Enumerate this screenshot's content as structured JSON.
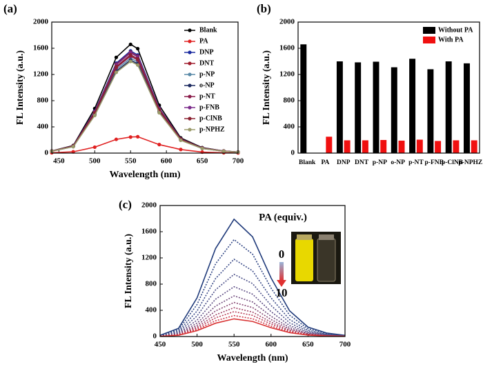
{
  "chart_data": [
    {
      "type": "line",
      "label": "(a)",
      "xlabel": "Wavelength (nm)",
      "ylabel": "FL Intensity (a.u.)",
      "x": [
        440,
        470,
        500,
        530,
        550,
        560,
        590,
        620,
        650,
        680,
        700
      ],
      "xlim": [
        440,
        700
      ],
      "xticks": [
        450,
        500,
        550,
        600,
        650,
        700
      ],
      "ylim": [
        0,
        2000
      ],
      "yticks": [
        0,
        400,
        800,
        1200,
        1600,
        2000
      ],
      "markers": true,
      "legend": "upper right",
      "series": [
        {
          "name": "Blank",
          "color": "#000000",
          "values": [
            33,
            116,
            681,
            1461,
            1660,
            1594,
            730,
            232,
            83,
            33,
            17
          ]
        },
        {
          "name": "PA",
          "color": "#e02020",
          "values": [
            5,
            20,
            90,
            210,
            245,
            250,
            130,
            55,
            15,
            5,
            2
          ]
        },
        {
          "name": "DNP",
          "color": "#1a2aa0",
          "values": [
            31,
            109,
            640,
            1373,
            1560,
            1498,
            686,
            218,
            78,
            31,
            16
          ]
        },
        {
          "name": "DNT",
          "color": "#a01c2c",
          "values": [
            31,
            108,
            631,
            1355,
            1540,
            1478,
            678,
            216,
            77,
            31,
            15
          ]
        },
        {
          "name": "p-NP",
          "color": "#5a8aa8",
          "values": [
            29,
            102,
            595,
            1276,
            1450,
            1392,
            638,
            203,
            73,
            29,
            15
          ]
        },
        {
          "name": "o-NP",
          "color": "#1c2a60",
          "values": [
            28,
            99,
            582,
            1250,
            1420,
            1363,
            625,
            199,
            71,
            28,
            14
          ]
        },
        {
          "name": "p-NT",
          "color": "#8a1c4a",
          "values": [
            30,
            104,
            607,
            1302,
            1480,
            1421,
            651,
            207,
            74,
            30,
            15
          ]
        },
        {
          "name": "p-FNB",
          "color": "#7a2a8a",
          "values": [
            31,
            107,
            627,
            1346,
            1530,
            1469,
            673,
            214,
            77,
            31,
            15
          ]
        },
        {
          "name": "p-ClNB",
          "color": "#8a2030",
          "values": [
            30,
            105,
            615,
            1320,
            1500,
            1440,
            660,
            210,
            75,
            30,
            15
          ]
        },
        {
          "name": "p-NPHZ",
          "color": "#9a9a6a",
          "values": [
            28,
            98,
            574,
            1232,
            1400,
            1344,
            616,
            196,
            70,
            28,
            14
          ]
        }
      ]
    },
    {
      "type": "bar",
      "label": "(b)",
      "ylabel": "FL Intensity (a.u.)",
      "categories": [
        "Blank",
        "PA",
        "DNP",
        "DNT",
        "p-NP",
        "o-NP",
        "p-NT",
        "p-FNB",
        "p-ClNB",
        "p-NPHZ"
      ],
      "ylim": [
        0,
        2000
      ],
      "yticks": [
        0,
        400,
        800,
        1200,
        1600,
        2000
      ],
      "legend": "upper right",
      "series": [
        {
          "name": "Without PA",
          "color": "#000000",
          "values": [
            1660,
            null,
            1400,
            1385,
            1395,
            1310,
            1440,
            1280,
            1400,
            1370
          ]
        },
        {
          "name": "With PA",
          "color": "#f01010",
          "values": [
            null,
            250,
            195,
            195,
            200,
            190,
            205,
            185,
            195,
            195
          ]
        }
      ]
    },
    {
      "type": "line",
      "label": "(c)",
      "xlabel": "Wavelength (nm)",
      "ylabel": "FL Intensity (a.u.)",
      "x": [
        450,
        475,
        500,
        525,
        550,
        575,
        600,
        625,
        650,
        675,
        700
      ],
      "xlim": [
        450,
        700
      ],
      "xticks": [
        450,
        500,
        550,
        600,
        650,
        700
      ],
      "ylim": [
        0,
        2000
      ],
      "yticks": [
        0,
        400,
        800,
        1200,
        1600,
        2000
      ],
      "markers": false,
      "annotations": [
        "PA (equiv.)",
        "0",
        "10"
      ],
      "series": [
        {
          "color": "#1f3a7a",
          "style": "solid",
          "values": [
            18,
            125,
            591,
            1343,
            1790,
            1522,
            895,
            394,
            143,
            54,
            18
          ]
        },
        {
          "color": "#2c4282",
          "style": "dotted",
          "values": [
            15,
            104,
            488,
            1110,
            1480,
            1258,
            740,
            326,
            118,
            44,
            15
          ]
        },
        {
          "color": "#3a4a88",
          "style": "dotted",
          "values": [
            12,
            83,
            389,
            885,
            1180,
            1003,
            590,
            260,
            94,
            35,
            12
          ]
        },
        {
          "color": "#4a4e88",
          "style": "dotted",
          "values": [
            10,
            67,
            314,
            713,
            950,
            808,
            475,
            209,
            76,
            29,
            10
          ]
        },
        {
          "color": "#5c4c84",
          "style": "dotted",
          "values": [
            8,
            53,
            251,
            570,
            760,
            646,
            380,
            167,
            61,
            23,
            8
          ]
        },
        {
          "color": "#704a7c",
          "style": "dotted",
          "values": [
            6,
            43,
            205,
            465,
            620,
            527,
            310,
            136,
            50,
            19,
            6
          ]
        },
        {
          "color": "#864672",
          "style": "dotted",
          "values": [
            5,
            36,
            172,
            390,
            520,
            442,
            260,
            114,
            42,
            16,
            5
          ]
        },
        {
          "color": "#a04266",
          "style": "dotted",
          "values": [
            4,
            31,
            145,
            330,
            440,
            374,
            220,
            97,
            35,
            13,
            4
          ]
        },
        {
          "color": "#b83c56",
          "style": "dotted",
          "values": [
            4,
            27,
            125,
            285,
            380,
            323,
            190,
            84,
            30,
            11,
            4
          ]
        },
        {
          "color": "#cc3646",
          "style": "dotted",
          "values": [
            3,
            22,
            106,
            240,
            320,
            272,
            160,
            70,
            26,
            10,
            3
          ]
        },
        {
          "color": "#d83030",
          "style": "solid",
          "values": [
            3,
            19,
            89,
            203,
            270,
            230,
            135,
            59,
            22,
            8,
            3
          ]
        }
      ]
    }
  ]
}
